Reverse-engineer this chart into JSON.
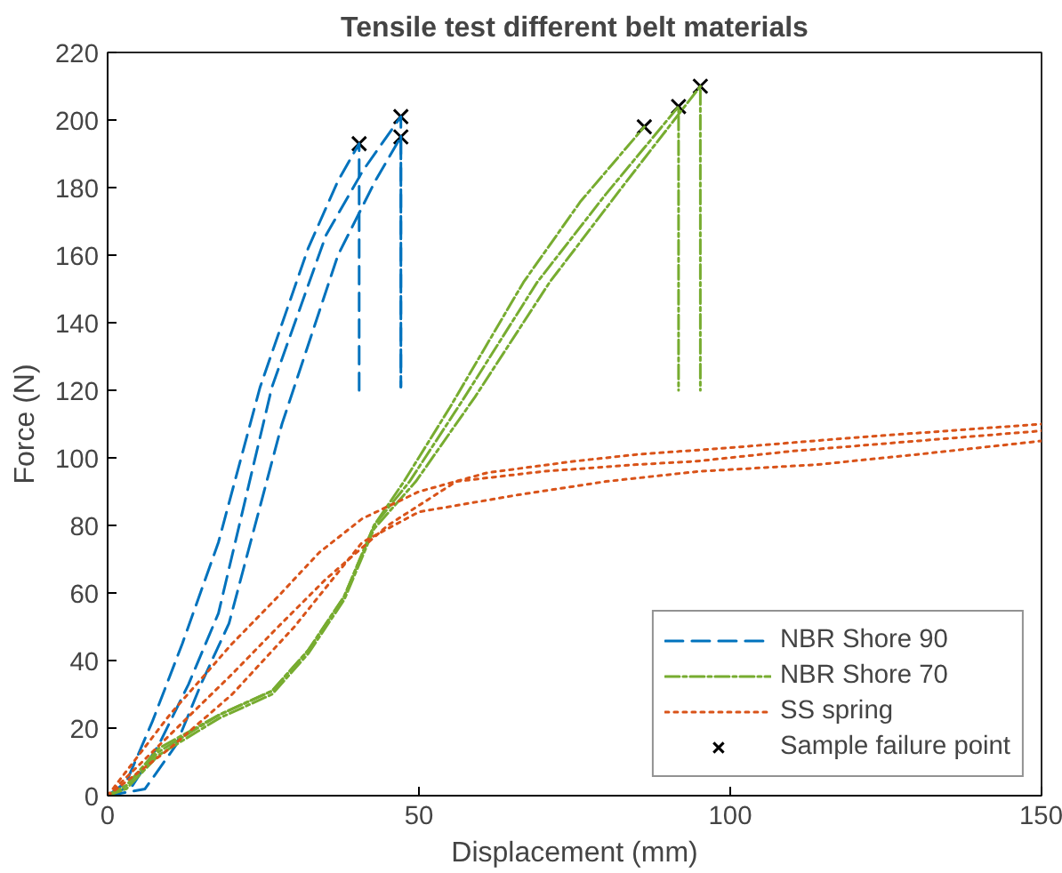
{
  "chart_data": {
    "type": "line",
    "title": "Tensile test different belt materials",
    "xlabel": "Displacement (mm)",
    "ylabel": "Force (N)",
    "xlim": [
      0,
      150
    ],
    "xticks": [
      0,
      50,
      100,
      150
    ],
    "ylim": [
      0,
      220
    ],
    "yticks": [
      0,
      20,
      40,
      60,
      80,
      100,
      120,
      140,
      160,
      180,
      200,
      220
    ],
    "grid": false,
    "legend": "bottom right",
    "series": [
      {
        "name": "NBR Shore 90",
        "color": "#0072bd",
        "line_style": "dashed",
        "x": [
          0,
          3,
          7.2,
          12,
          17.8,
          24.5,
          32.2,
          37,
          40.4,
          40.4
        ],
        "values": [
          0,
          4,
          22,
          45,
          75,
          121,
          162,
          182,
          193,
          120
        ]
      },
      {
        "color": "#0072bd",
        "line_style": "dashed",
        "x": [
          0,
          4,
          8.2,
          13,
          17.8,
          26.4,
          35.1,
          41,
          47.1,
          47.1
        ],
        "values": [
          0,
          3,
          15,
          33,
          54,
          121,
          166,
          185,
          201,
          121
        ]
      },
      {
        "color": "#0072bd",
        "line_style": "dashed",
        "x": [
          0,
          6,
          11,
          15,
          19.5,
          28,
          37,
          43,
          47.1,
          47.1
        ],
        "values": [
          0,
          2,
          15,
          33,
          51,
          110,
          160,
          182,
          195,
          121
        ]
      },
      {
        "name": "NBR Shore 70",
        "color": "#77ac30",
        "line_style": "dashdot",
        "x": [
          0,
          3,
          8.2,
          18,
          26.4,
          32.2,
          38,
          42.8,
          47.6,
          55,
          66.8,
          76,
          86.2
        ],
        "values": [
          0,
          3,
          14,
          24,
          31,
          43,
          59,
          80,
          93,
          115,
          152,
          176,
          198
        ]
      },
      {
        "color": "#77ac30",
        "line_style": "dashdot",
        "x": [
          0,
          3,
          8.2,
          18,
          26.4,
          32.2,
          38,
          42.8,
          48.5,
          57,
          69,
          80,
          91.7,
          91.7
        ],
        "values": [
          0,
          3,
          13,
          24,
          31,
          43,
          59,
          80,
          93,
          117,
          152,
          178,
          204,
          120
        ]
      },
      {
        "color": "#77ac30",
        "line_style": "dashdot",
        "x": [
          0,
          3,
          8.2,
          18,
          26.4,
          32.2,
          38,
          42.8,
          49.5,
          59,
          71,
          83,
          95.2,
          95.2
        ],
        "values": [
          0,
          2,
          12,
          23,
          30,
          42,
          58,
          79,
          93,
          118,
          152,
          181,
          210,
          120
        ]
      },
      {
        "name": "SS spring",
        "color": "#d95319",
        "line_style": "dotted",
        "x": [
          0,
          10,
          20,
          27.4,
          34,
          40.9,
          50,
          61,
          75,
          85,
          100,
          120,
          150
        ],
        "values": [
          0,
          24,
          45,
          59,
          72,
          82,
          90,
          95.6,
          99,
          101,
          103,
          106,
          110
        ]
      },
      {
        "color": "#d95319",
        "line_style": "dotted",
        "x": [
          0,
          10,
          20,
          27.4,
          35,
          45,
          56,
          70,
          85,
          94.6,
          110,
          130,
          150
        ],
        "values": [
          0,
          18,
          36,
          50,
          64,
          80,
          93,
          96,
          98,
          99,
          102,
          105,
          108
        ]
      },
      {
        "color": "#d95319",
        "line_style": "dotted",
        "x": [
          0,
          10,
          20,
          30,
          40.9,
          50,
          65.8,
          80,
          95,
          114,
          130,
          150
        ],
        "values": [
          0,
          14,
          30,
          50,
          75,
          84,
          89,
          93,
          96,
          98,
          101,
          105
        ]
      },
      {
        "name": "Sample failure point",
        "type": "scatter",
        "marker": "cross",
        "color": "#000000",
        "x": [
          40.4,
          47.1,
          47.1,
          86.2,
          91.7,
          95.2
        ],
        "values": [
          193,
          201,
          195,
          198,
          204,
          210
        ]
      }
    ]
  }
}
